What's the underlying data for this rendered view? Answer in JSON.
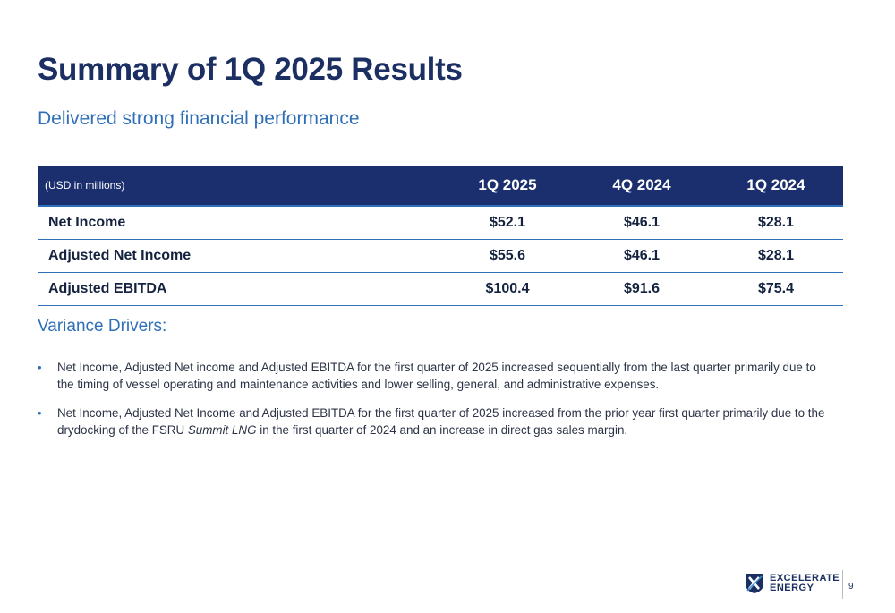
{
  "slide": {
    "title": "Summary of 1Q 2025 Results",
    "subtitle": "Delivered strong financial performance",
    "page_number": "9"
  },
  "table": {
    "unit_label": "(USD in millions)",
    "columns": [
      "1Q 2025",
      "4Q 2024",
      "1Q 2024"
    ],
    "rows": [
      {
        "label": "Net Income",
        "values": [
          "$52.1",
          "$46.1",
          "$28.1"
        ]
      },
      {
        "label": "Adjusted Net Income",
        "values": [
          "$55.6",
          "$46.1",
          "$28.1"
        ]
      },
      {
        "label": "Adjusted EBITDA",
        "values": [
          "$100.4",
          "$91.6",
          "$75.4"
        ]
      }
    ]
  },
  "drivers": {
    "title": "Variance Drivers:",
    "bullets": [
      {
        "text": "Net Income, Adjusted Net income and Adjusted EBITDA for the first quarter of 2025 increased sequentially from the last quarter primarily due to the timing of vessel operating and maintenance activities and lower selling, general, and administrative expenses."
      },
      {
        "pre": "Net Income, Adjusted Net Income and Adjusted EBITDA for the first quarter of 2025 increased from the prior year first quarter primarily due to the drydocking of the FSRU ",
        "italic": "Summit LNG",
        "post": " in the first quarter of 2024 and an increase in direct gas sales margin."
      }
    ]
  },
  "logo": {
    "line1": "EXCELERATE",
    "line2": "ENERGY",
    "icon": "excelerate-shield-logo-icon",
    "brand_color": "#1b2f63"
  },
  "colors": {
    "navy": "#1b2f6e",
    "accent_blue": "#2e6fb7"
  }
}
